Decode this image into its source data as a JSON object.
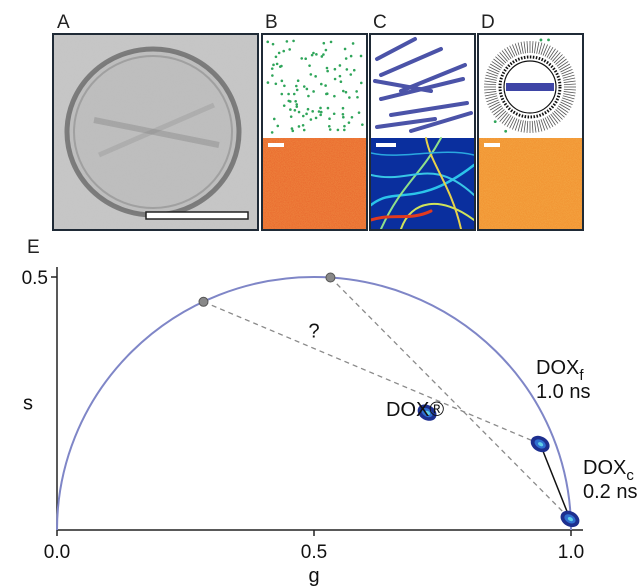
{
  "panels": {
    "A": "A",
    "B": "B",
    "C": "C",
    "D": "D",
    "E": "E"
  },
  "chart_data": {
    "type": "scatter",
    "title": "",
    "xlabel": "g",
    "ylabel": "s",
    "xlim": [
      0,
      1
    ],
    "ylim": [
      0,
      0.5
    ],
    "x_ticks": [
      "0.0",
      "0.5",
      "1.0"
    ],
    "y_ticks": [
      "0.5"
    ],
    "grid": false,
    "universal_circle": {
      "center": [
        0.5,
        0
      ],
      "radius": 0.5,
      "color": "#7f86c7"
    },
    "points": [
      {
        "label": "DOX®",
        "x": 0.72,
        "y": 0.232
      },
      {
        "label_main": "DOX",
        "label_sub": "f",
        "lifetime": "1.0 ns",
        "x": 0.94,
        "y": 0.17
      },
      {
        "label_main": "DOX",
        "label_sub": "c",
        "lifetime": "0.2 ns",
        "x": 0.998,
        "y": 0.022
      }
    ],
    "anchor_points": [
      {
        "x": 0.285,
        "y": 0.451
      },
      {
        "x": 0.532,
        "y": 0.499
      }
    ],
    "unknown_label": "?",
    "colors": {
      "axis": "#222222",
      "dash": "#8a8a8a",
      "anchor": "#888888",
      "cluster_edge": "#1d2f8f",
      "cluster_core": "#5fd0e8"
    }
  }
}
